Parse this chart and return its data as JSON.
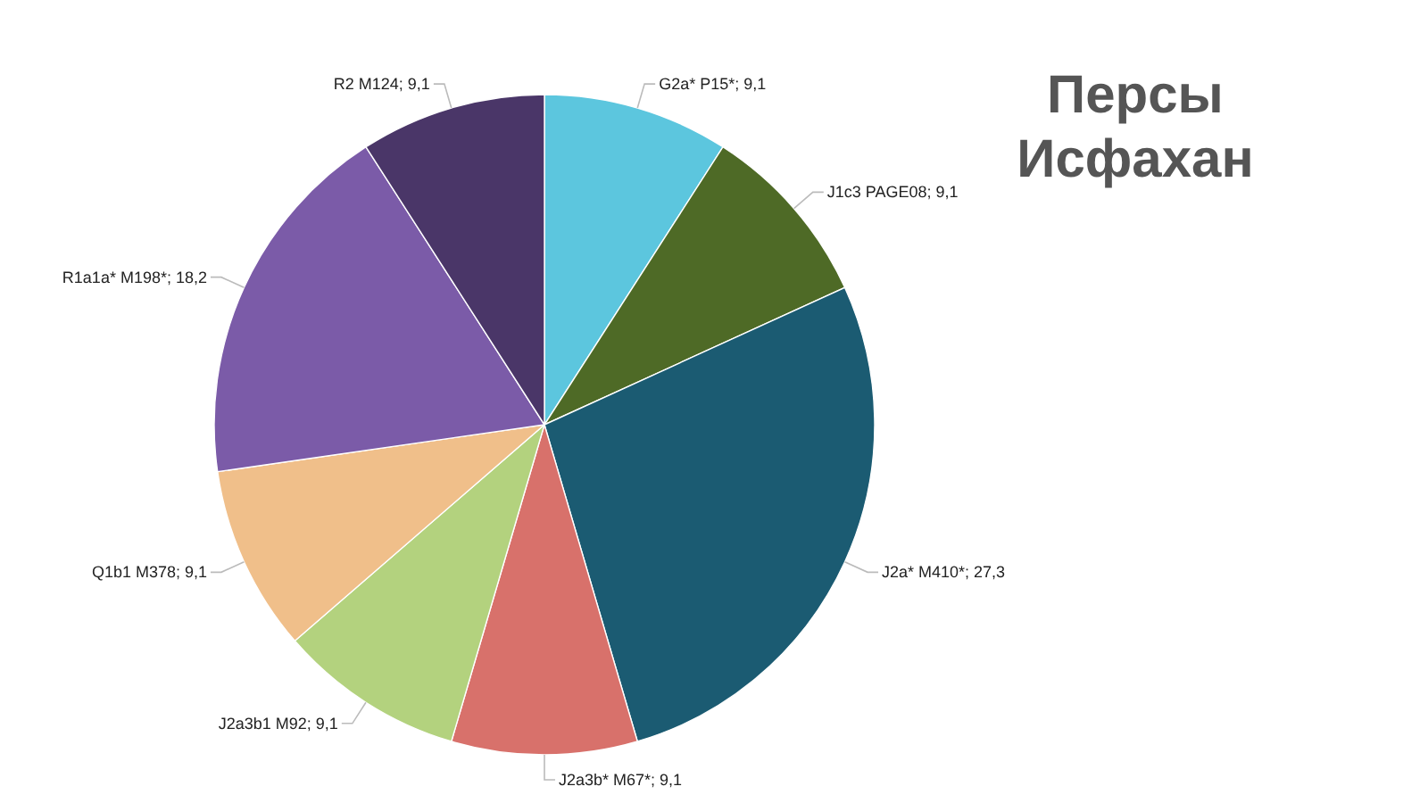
{
  "chart_data": {
    "type": "pie",
    "title": "Персы\nИсфахан",
    "categories": [
      "G2a* P15*",
      "J1c3 PAGE08",
      "J2a* M410*",
      "J2a3b* M67*",
      "J2a3b1 M92",
      "Q1b1 M378",
      "R1a1a* M198*",
      "R2 M124"
    ],
    "values": [
      9.1,
      9.1,
      27.3,
      9.1,
      9.1,
      9.1,
      18.2,
      9.1
    ],
    "value_labels": [
      "9,1",
      "9,1",
      "27,3",
      "9,1",
      "9,1",
      "9,1",
      "18,2",
      "9,1"
    ],
    "colors": [
      "#5cc6de",
      "#4e6a26",
      "#1b5b72",
      "#d8716b",
      "#b3d27e",
      "#f0bf8a",
      "#7b5ba8",
      "#4a3668"
    ]
  }
}
